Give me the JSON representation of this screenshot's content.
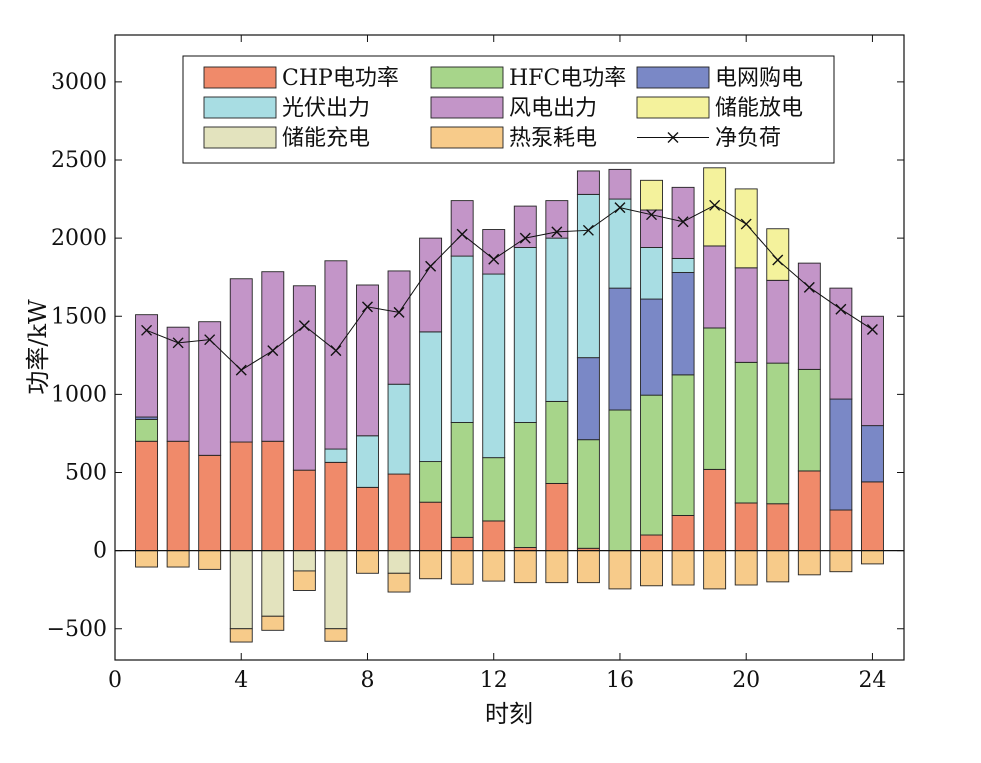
{
  "chart_data": {
    "type": "bar",
    "stacked": true,
    "xlabel": "时刻",
    "ylabel": "功率/kW",
    "xlim": [
      0,
      25
    ],
    "ylim": [
      -700,
      3300
    ],
    "xticks": [
      0,
      4,
      8,
      12,
      16,
      20,
      24
    ],
    "yticks": [
      -500,
      0,
      500,
      1000,
      1500,
      2000,
      2500,
      3000
    ],
    "ytick_labels": [
      "−500",
      "0",
      "500",
      "1000",
      "1500",
      "2000",
      "2500",
      "3000"
    ],
    "x": [
      1,
      2,
      3,
      4,
      5,
      6,
      7,
      8,
      9,
      10,
      11,
      12,
      13,
      14,
      15,
      16,
      17,
      18,
      19,
      20,
      21,
      22,
      23,
      24
    ],
    "legend_position": "top",
    "series": [
      {
        "name": "CHP电功率",
        "key": "chp",
        "color": "#F08A6A",
        "sign": 1,
        "values": [
          700,
          700,
          610,
          695,
          700,
          515,
          565,
          405,
          490,
          310,
          85,
          190,
          20,
          430,
          15,
          0,
          100,
          225,
          520,
          305,
          300,
          510,
          260,
          440
        ]
      },
      {
        "name": "HFC电功率",
        "key": "hfc",
        "color": "#A7D58A",
        "sign": 1,
        "values": [
          140,
          0,
          0,
          0,
          0,
          0,
          0,
          0,
          0,
          260,
          735,
          405,
          800,
          525,
          695,
          900,
          895,
          900,
          905,
          900,
          900,
          650,
          0,
          0
        ]
      },
      {
        "name": "电网购电",
        "key": "grid",
        "color": "#7A88C6",
        "sign": 1,
        "values": [
          15,
          0,
          0,
          0,
          0,
          0,
          0,
          0,
          0,
          0,
          0,
          0,
          0,
          0,
          525,
          780,
          615,
          655,
          0,
          0,
          0,
          0,
          710,
          360
        ]
      },
      {
        "name": "光伏出力",
        "key": "pv",
        "color": "#A8DDE3",
        "sign": 1,
        "values": [
          0,
          0,
          0,
          0,
          0,
          0,
          85,
          330,
          575,
          830,
          1065,
          1175,
          1120,
          1045,
          1045,
          570,
          330,
          90,
          0,
          0,
          0,
          0,
          0,
          0
        ]
      },
      {
        "name": "风电出力",
        "key": "wind",
        "color": "#C395C8",
        "sign": 1,
        "values": [
          655,
          730,
          855,
          1045,
          1085,
          1180,
          1205,
          965,
          725,
          600,
          355,
          285,
          265,
          240,
          150,
          190,
          240,
          455,
          525,
          605,
          530,
          680,
          710,
          700
        ]
      },
      {
        "name": "储能放电",
        "key": "ess_dis",
        "color": "#F4F29C",
        "sign": 1,
        "values": [
          0,
          0,
          0,
          0,
          0,
          0,
          0,
          0,
          0,
          0,
          0,
          0,
          0,
          0,
          0,
          0,
          190,
          0,
          500,
          505,
          330,
          0,
          0,
          0
        ]
      },
      {
        "name": "储能充电",
        "key": "ess_chg",
        "color": "#E3E3BE",
        "sign": -1,
        "values": [
          0,
          0,
          0,
          500,
          420,
          130,
          500,
          0,
          145,
          0,
          0,
          0,
          0,
          0,
          0,
          0,
          0,
          0,
          0,
          0,
          0,
          0,
          0,
          0
        ]
      },
      {
        "name": "热泵耗电",
        "key": "hp",
        "color": "#F7CB8A",
        "sign": -1,
        "values": [
          105,
          105,
          120,
          85,
          90,
          125,
          80,
          145,
          120,
          180,
          215,
          195,
          205,
          205,
          205,
          245,
          225,
          220,
          245,
          220,
          200,
          155,
          135,
          85
        ]
      }
    ],
    "net_load": {
      "name": "净负荷",
      "color": "#111111",
      "values": [
        1410,
        1330,
        1350,
        1155,
        1280,
        1440,
        1280,
        1560,
        1525,
        1820,
        2025,
        1865,
        2000,
        2040,
        2050,
        2195,
        2150,
        2105,
        2210,
        2090,
        1860,
        1685,
        1545,
        1415
      ]
    },
    "legend_order": [
      "chp",
      "pv",
      "ess_chg",
      "hfc",
      "wind",
      "hp",
      "grid",
      "ess_dis",
      "net_load"
    ]
  }
}
